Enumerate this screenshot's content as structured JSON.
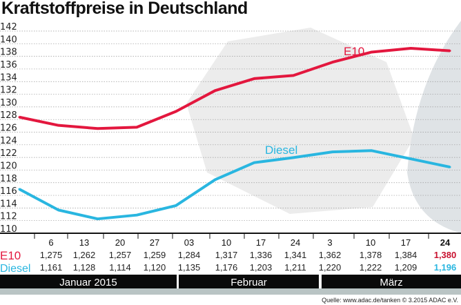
{
  "chart_data": {
    "type": "line",
    "title": "Kraftstoffpreise in Deutschland",
    "x": [
      "6",
      "13",
      "20",
      "27",
      "03",
      "10",
      "17",
      "24",
      "3",
      "10",
      "17",
      "24"
    ],
    "months": [
      "Januar 2015",
      "Februar",
      "März"
    ],
    "ylim": [
      110,
      142
    ],
    "yticks": [
      110,
      112,
      114,
      116,
      118,
      120,
      122,
      124,
      126,
      128,
      130,
      132,
      134,
      136,
      138,
      140,
      142
    ],
    "grid": true,
    "series": [
      {
        "name": "E10",
        "color": "#e3173e",
        "values": [
          127.5,
          126.2,
          125.7,
          125.9,
          128.4,
          131.7,
          133.6,
          134.1,
          136.2,
          137.8,
          138.4,
          138.0
        ],
        "labels": [
          "1,275",
          "1,262",
          "1,257",
          "1,259",
          "1,284",
          "1,317",
          "1,336",
          "1,341",
          "1,362",
          "1,378",
          "1,384",
          "1,380"
        ]
      },
      {
        "name": "Diesel",
        "color": "#29b6e0",
        "values": [
          116.1,
          112.8,
          111.4,
          112.0,
          113.5,
          117.6,
          120.3,
          121.1,
          122.0,
          122.2,
          120.9,
          119.6
        ],
        "labels": [
          "1,161",
          "1,128",
          "1,114",
          "1,120",
          "1,135",
          "1,176",
          "1,203",
          "1,211",
          "1,220",
          "1,222",
          "1,209",
          "1,196"
        ]
      }
    ],
    "highlight_color_e10": "#c8102e",
    "highlight_color_diesel": "#29b6e0"
  },
  "source": "Quelle: www.adac.de/tanken  © 3.2015  ADAC e.V."
}
